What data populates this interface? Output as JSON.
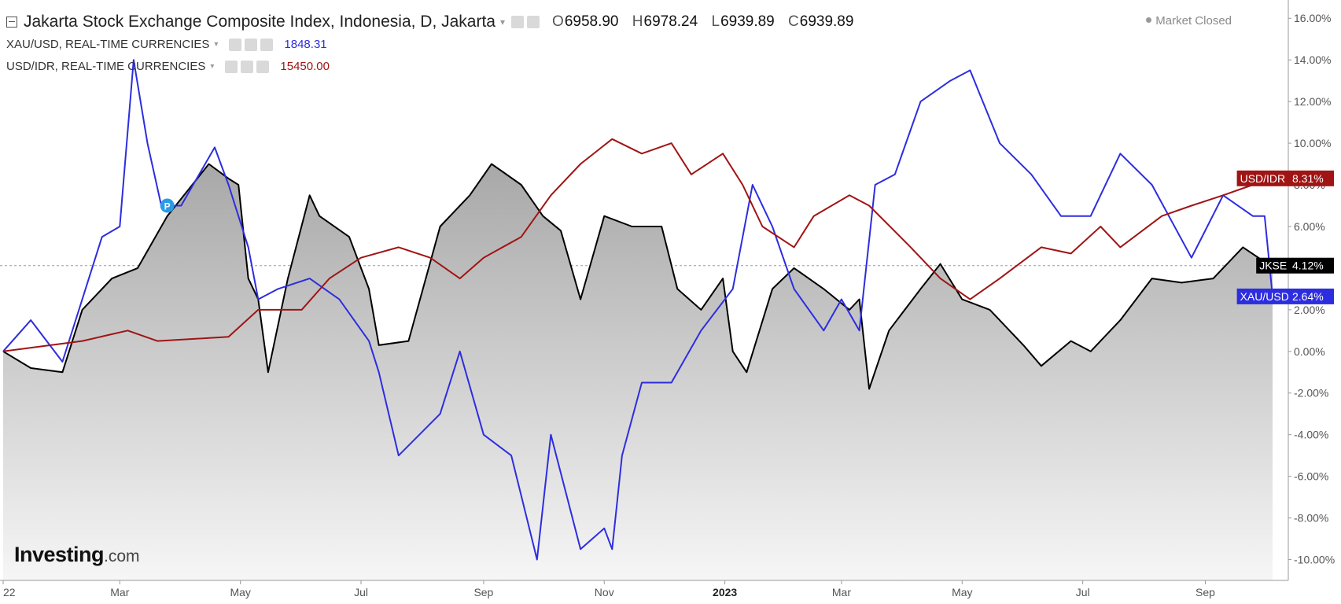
{
  "header": {
    "title": "Jakarta Stock Exchange Composite Index, Indonesia, D, Jakarta",
    "ohlc": [
      {
        "key": "O",
        "value": "6958.90"
      },
      {
        "key": "H",
        "value": "6978.24"
      },
      {
        "key": "L",
        "value": "6939.89"
      },
      {
        "key": "C",
        "value": "6939.89"
      }
    ],
    "market_status": "Market Closed"
  },
  "overlays": [
    {
      "name": "XAU/USD, REAL-TIME CURRENCIES",
      "value": "1848.31",
      "color": "#2d2de0"
    },
    {
      "name": "USD/IDR, REAL-TIME CURRENCIES",
      "value": "15450.00",
      "color": "#a01414"
    }
  ],
  "brand": {
    "main": "Investing",
    "suffix": ".com"
  },
  "chart_data": {
    "type": "line",
    "x_range": [
      "2022-01-01",
      "2023-10-05"
    ],
    "ylim": [
      -11,
      16.5
    ],
    "y_unit": "%",
    "y_ticks": [
      "16.00%",
      "14.00%",
      "12.00%",
      "10.00%",
      "8.00%",
      "6.00%",
      "4.00%",
      "2.00%",
      "0.00%",
      "-2.00%",
      "-4.00%",
      "-6.00%",
      "-8.00%",
      "-10.00%"
    ],
    "x_ticks": [
      {
        "label": "22",
        "date": "2022-01-01"
      },
      {
        "label": "Mar",
        "date": "2022-03-01"
      },
      {
        "label": "May",
        "date": "2022-05-01"
      },
      {
        "label": "Jul",
        "date": "2022-07-01"
      },
      {
        "label": "Sep",
        "date": "2022-09-01"
      },
      {
        "label": "Nov",
        "date": "2022-11-01"
      },
      {
        "label": "2023",
        "date": "2023-01-01"
      },
      {
        "label": "Mar",
        "date": "2023-03-01"
      },
      {
        "label": "May",
        "date": "2023-05-01"
      },
      {
        "label": "Jul",
        "date": "2023-07-01"
      },
      {
        "label": "Sep",
        "date": "2023-09-01"
      }
    ],
    "reference_line": 4.12,
    "marker": {
      "label": "P",
      "date": "2022-03-25",
      "value": 7.0
    },
    "series": [
      {
        "name": "JKSE",
        "label": "4.12%",
        "last": 4.12,
        "color": "#000000",
        "filled": true,
        "points": [
          [
            "2022-01-01",
            0.0
          ],
          [
            "2022-01-15",
            -0.8
          ],
          [
            "2022-01-31",
            -1.0
          ],
          [
            "2022-02-10",
            2.0
          ],
          [
            "2022-02-25",
            3.5
          ],
          [
            "2022-03-10",
            4.0
          ],
          [
            "2022-03-25",
            6.5
          ],
          [
            "2022-04-05",
            7.8
          ],
          [
            "2022-04-15",
            9.0
          ],
          [
            "2022-04-25",
            8.3
          ],
          [
            "2022-04-30",
            8.0
          ],
          [
            "2022-05-05",
            3.5
          ],
          [
            "2022-05-10",
            2.5
          ],
          [
            "2022-05-15",
            -1.0
          ],
          [
            "2022-05-25",
            3.5
          ],
          [
            "2022-06-05",
            7.5
          ],
          [
            "2022-06-10",
            6.5
          ],
          [
            "2022-06-25",
            5.5
          ],
          [
            "2022-07-05",
            3.0
          ],
          [
            "2022-07-10",
            0.3
          ],
          [
            "2022-07-25",
            0.5
          ],
          [
            "2022-08-10",
            6.0
          ],
          [
            "2022-08-25",
            7.5
          ],
          [
            "2022-09-05",
            9.0
          ],
          [
            "2022-09-20",
            8.0
          ],
          [
            "2022-10-01",
            6.5
          ],
          [
            "2022-10-10",
            5.8
          ],
          [
            "2022-10-20",
            2.5
          ],
          [
            "2022-11-01",
            6.5
          ],
          [
            "2022-11-15",
            6.0
          ],
          [
            "2022-11-30",
            6.0
          ],
          [
            "2022-12-08",
            3.0
          ],
          [
            "2022-12-20",
            2.0
          ],
          [
            "2022-12-31",
            3.5
          ],
          [
            "2023-01-05",
            0.0
          ],
          [
            "2023-01-12",
            -1.0
          ],
          [
            "2023-01-25",
            3.0
          ],
          [
            "2023-02-05",
            4.0
          ],
          [
            "2023-02-20",
            3.0
          ],
          [
            "2023-03-05",
            2.0
          ],
          [
            "2023-03-10",
            2.5
          ],
          [
            "2023-03-15",
            -1.8
          ],
          [
            "2023-03-25",
            1.0
          ],
          [
            "2023-04-10",
            3.0
          ],
          [
            "2023-04-20",
            4.2
          ],
          [
            "2023-05-01",
            2.5
          ],
          [
            "2023-05-15",
            2.0
          ],
          [
            "2023-06-01",
            0.3
          ],
          [
            "2023-06-10",
            -0.7
          ],
          [
            "2023-06-25",
            0.5
          ],
          [
            "2023-07-05",
            0.0
          ],
          [
            "2023-07-20",
            1.5
          ],
          [
            "2023-08-05",
            3.5
          ],
          [
            "2023-08-20",
            3.3
          ],
          [
            "2023-09-05",
            3.5
          ],
          [
            "2023-09-20",
            5.0
          ],
          [
            "2023-10-01",
            4.3
          ],
          [
            "2023-10-05",
            4.12
          ]
        ]
      },
      {
        "name": "XAU/USD",
        "label": "2.64%",
        "last": 2.64,
        "color": "#2d2de0",
        "filled": false,
        "points": [
          [
            "2022-01-01",
            0.0
          ],
          [
            "2022-01-15",
            1.5
          ],
          [
            "2022-01-31",
            -0.5
          ],
          [
            "2022-02-10",
            2.5
          ],
          [
            "2022-02-20",
            5.5
          ],
          [
            "2022-03-01",
            6.0
          ],
          [
            "2022-03-08",
            14.0
          ],
          [
            "2022-03-15",
            10.0
          ],
          [
            "2022-03-22",
            7.0
          ],
          [
            "2022-04-01",
            7.0
          ],
          [
            "2022-04-18",
            9.8
          ],
          [
            "2022-04-25",
            8.0
          ],
          [
            "2022-05-05",
            5.0
          ],
          [
            "2022-05-10",
            2.5
          ],
          [
            "2022-05-20",
            3.0
          ],
          [
            "2022-06-05",
            3.5
          ],
          [
            "2022-06-20",
            2.5
          ],
          [
            "2022-07-05",
            0.5
          ],
          [
            "2022-07-10",
            -1.0
          ],
          [
            "2022-07-20",
            -5.0
          ],
          [
            "2022-08-10",
            -3.0
          ],
          [
            "2022-08-20",
            0.0
          ],
          [
            "2022-09-01",
            -4.0
          ],
          [
            "2022-09-15",
            -5.0
          ],
          [
            "2022-09-28",
            -10.0
          ],
          [
            "2022-10-05",
            -4.0
          ],
          [
            "2022-10-20",
            -9.5
          ],
          [
            "2022-11-01",
            -8.5
          ],
          [
            "2022-11-05",
            -9.5
          ],
          [
            "2022-11-10",
            -5.0
          ],
          [
            "2022-11-20",
            -1.5
          ],
          [
            "2022-12-05",
            -1.5
          ],
          [
            "2022-12-20",
            1.0
          ],
          [
            "2023-01-05",
            3.0
          ],
          [
            "2023-01-15",
            8.0
          ],
          [
            "2023-01-25",
            6.0
          ],
          [
            "2023-02-05",
            3.0
          ],
          [
            "2023-02-20",
            1.0
          ],
          [
            "2023-03-01",
            2.5
          ],
          [
            "2023-03-10",
            1.0
          ],
          [
            "2023-03-18",
            8.0
          ],
          [
            "2023-03-28",
            8.5
          ],
          [
            "2023-04-10",
            12.0
          ],
          [
            "2023-04-25",
            13.0
          ],
          [
            "2023-05-05",
            13.5
          ],
          [
            "2023-05-20",
            10.0
          ],
          [
            "2023-06-05",
            8.5
          ],
          [
            "2023-06-20",
            6.5
          ],
          [
            "2023-07-05",
            6.5
          ],
          [
            "2023-07-20",
            9.5
          ],
          [
            "2023-08-05",
            8.0
          ],
          [
            "2023-08-25",
            4.5
          ],
          [
            "2023-09-10",
            7.5
          ],
          [
            "2023-09-25",
            6.5
          ],
          [
            "2023-10-01",
            6.5
          ],
          [
            "2023-10-05",
            2.64
          ]
        ]
      },
      {
        "name": "USD/IDR",
        "label": "8.31%",
        "last": 8.31,
        "color": "#a01414",
        "filled": false,
        "points": [
          [
            "2022-01-01",
            0.0
          ],
          [
            "2022-02-10",
            0.5
          ],
          [
            "2022-03-05",
            1.0
          ],
          [
            "2022-03-20",
            0.5
          ],
          [
            "2022-04-25",
            0.7
          ],
          [
            "2022-05-10",
            2.0
          ],
          [
            "2022-06-01",
            2.0
          ],
          [
            "2022-06-15",
            3.5
          ],
          [
            "2022-07-01",
            4.5
          ],
          [
            "2022-07-20",
            5.0
          ],
          [
            "2022-08-05",
            4.5
          ],
          [
            "2022-08-20",
            3.5
          ],
          [
            "2022-09-01",
            4.5
          ],
          [
            "2022-09-20",
            5.5
          ],
          [
            "2022-10-05",
            7.5
          ],
          [
            "2022-10-20",
            9.0
          ],
          [
            "2022-11-05",
            10.2
          ],
          [
            "2022-11-20",
            9.5
          ],
          [
            "2022-12-05",
            10.0
          ],
          [
            "2022-12-15",
            8.5
          ],
          [
            "2022-12-31",
            9.5
          ],
          [
            "2023-01-10",
            8.0
          ],
          [
            "2023-01-20",
            6.0
          ],
          [
            "2023-02-05",
            5.0
          ],
          [
            "2023-02-15",
            6.5
          ],
          [
            "2023-03-05",
            7.5
          ],
          [
            "2023-03-15",
            7.0
          ],
          [
            "2023-04-05",
            5.0
          ],
          [
            "2023-04-20",
            3.5
          ],
          [
            "2023-05-05",
            2.5
          ],
          [
            "2023-05-20",
            3.5
          ],
          [
            "2023-06-10",
            5.0
          ],
          [
            "2023-06-25",
            4.7
          ],
          [
            "2023-07-10",
            6.0
          ],
          [
            "2023-07-20",
            5.0
          ],
          [
            "2023-08-10",
            6.5
          ],
          [
            "2023-08-25",
            7.0
          ],
          [
            "2023-09-10",
            7.5
          ],
          [
            "2023-09-25",
            8.0
          ],
          [
            "2023-10-05",
            8.31
          ]
        ]
      }
    ]
  }
}
